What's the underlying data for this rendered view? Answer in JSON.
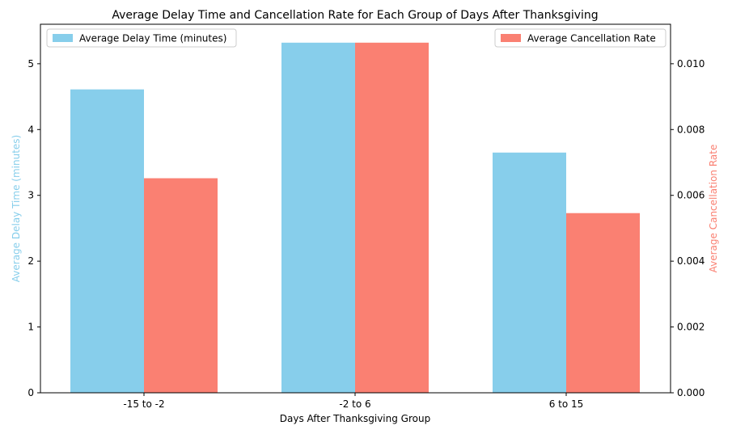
{
  "chart_data": {
    "type": "bar",
    "title": "Average Delay Time and Cancellation Rate for Each Group of Days After Thanksgiving",
    "xlabel": "Days After Thanksgiving Group",
    "categories": [
      "-15 to -2",
      "-2 to 6",
      "6 to 15"
    ],
    "left_axis": {
      "label": "Average Delay Time (minutes)",
      "color": "#87ceeb",
      "ylim": [
        0,
        5.6
      ],
      "ticks": [
        0,
        1,
        2,
        3,
        4,
        5
      ],
      "tick_labels": [
        "0",
        "1",
        "2",
        "3",
        "4",
        "5"
      ]
    },
    "right_axis": {
      "label": "Average Cancellation Rate",
      "color": "#fa8072",
      "ylim": [
        0,
        0.0112
      ],
      "ticks": [
        0,
        0.002,
        0.004,
        0.006,
        0.008,
        0.01
      ],
      "tick_labels": [
        "0.000",
        "0.002",
        "0.004",
        "0.006",
        "0.008",
        "0.010"
      ]
    },
    "series": [
      {
        "name": "Average Delay Time (minutes)",
        "axis": "left",
        "color": "#87ceeb",
        "values": [
          4.61,
          5.32,
          3.65
        ]
      },
      {
        "name": "Average Cancellation Rate",
        "axis": "right",
        "color": "#fa8072",
        "values": [
          0.00652,
          0.01064,
          0.00546
        ]
      }
    ],
    "legends": [
      {
        "series": 0,
        "placement": "top-left"
      },
      {
        "series": 1,
        "placement": "top-right"
      }
    ],
    "grid": false
  }
}
